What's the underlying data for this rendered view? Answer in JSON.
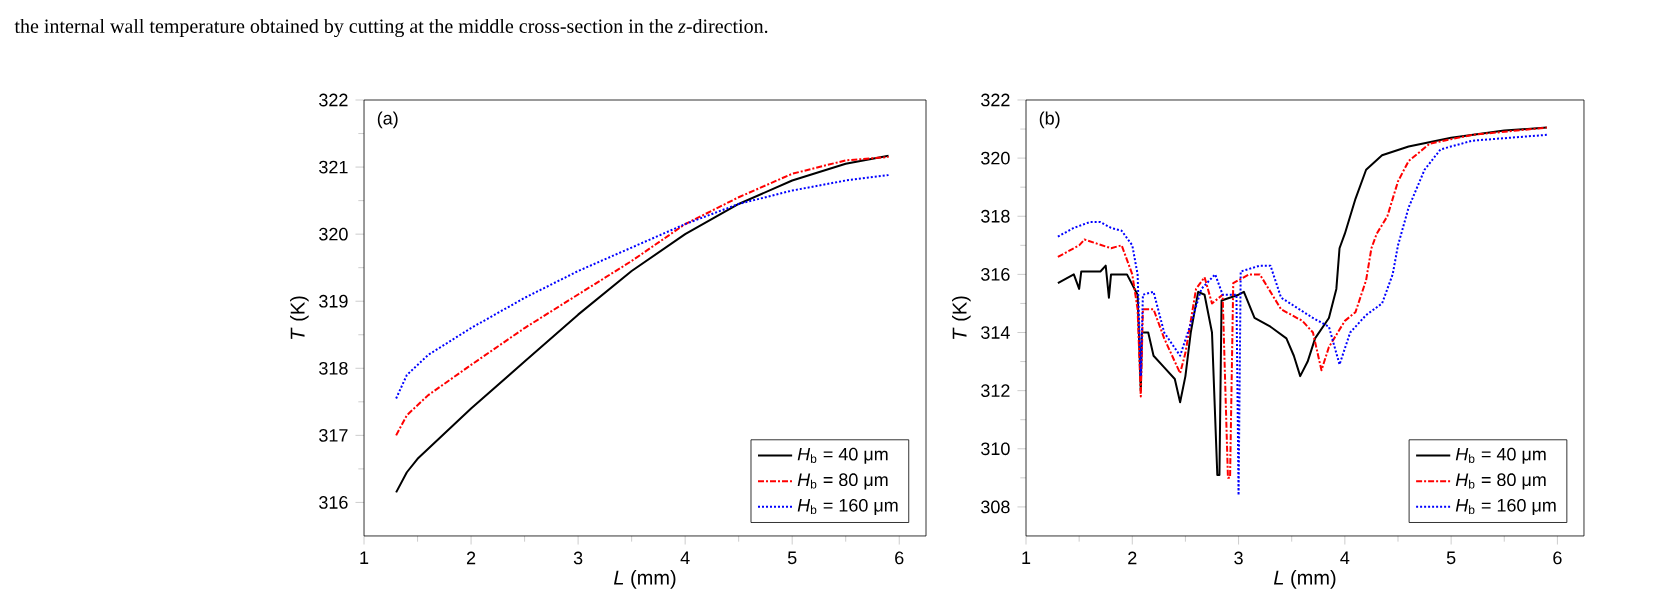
{
  "chart_data": [
    {
      "type": "line",
      "annotations": [
        "the internal wall temperature obtained by cutting at the middle cross-section in the *z*-direction.",
        "(a)"
      ],
      "xlabel": "*L* (mm)",
      "ylabel": "*T* (K)",
      "xlim": [
        1,
        6.25
      ],
      "ylim": [
        315.5,
        322
      ],
      "xticks": [
        1,
        2,
        3,
        4,
        5,
        6
      ],
      "yticks": [
        316,
        317,
        318,
        319,
        320,
        321,
        322
      ],
      "legend": "bottom right",
      "grid": false,
      "series": [
        {
          "name": "*H*$_{b}$ = 40 μm",
          "color": "#000000",
          "line_style": "solid",
          "x": [
            1.3,
            1.4,
            1.5,
            1.7,
            2,
            2.5,
            3,
            3.5,
            4,
            4.5,
            5,
            5.5,
            5.9
          ],
          "values": [
            316.15,
            316.45,
            316.65,
            316.95,
            317.4,
            318.1,
            318.8,
            319.45,
            320.0,
            320.45,
            320.8,
            321.05,
            321.17
          ]
        },
        {
          "name": "*H*$_{b}$ = 80 μm",
          "color": "#ff0000",
          "line_style": "dashed",
          "x": [
            1.3,
            1.4,
            1.6,
            2,
            2.5,
            3,
            3.5,
            4,
            4.5,
            5,
            5.5,
            5.9
          ],
          "values": [
            317.0,
            317.3,
            317.6,
            318.05,
            318.6,
            319.1,
            319.6,
            320.15,
            320.55,
            320.9,
            321.1,
            321.15
          ]
        },
        {
          "name": "*H*$_{b}$ = 160 μm",
          "color": "#0000ff",
          "line_style": "dotted",
          "x": [
            1.3,
            1.4,
            1.6,
            2,
            2.5,
            3,
            3.5,
            4,
            4.5,
            5,
            5.5,
            5.9
          ],
          "values": [
            317.55,
            317.9,
            318.2,
            318.6,
            319.05,
            319.45,
            319.8,
            320.15,
            320.45,
            320.65,
            320.8,
            320.88
          ]
        }
      ]
    },
    {
      "type": "line",
      "annotations": [
        "(b)"
      ],
      "xlabel": "*L* (mm)",
      "ylabel": "*T* (K)",
      "xlim": [
        1,
        6.25
      ],
      "ylim": [
        307,
        322
      ],
      "xticks": [
        1,
        2,
        3,
        4,
        5,
        6
      ],
      "yticks": [
        308,
        310,
        312,
        314,
        316,
        318,
        320,
        322
      ],
      "legend": "bottom right",
      "grid": false,
      "series": [
        {
          "name": "*H*$_{b}$ = 40 μm",
          "color": "#000000",
          "line_style": "solid",
          "x": [
            1.3,
            1.45,
            1.5,
            1.52,
            1.7,
            1.75,
            1.78,
            1.8,
            1.95,
            2.05,
            2.08,
            2.09,
            2.15,
            2.2,
            2.3,
            2.4,
            2.45,
            2.5,
            2.55,
            2.62,
            2.68,
            2.75,
            2.8,
            2.82,
            2.84,
            3.0,
            3.05,
            3.15,
            3.3,
            3.45,
            3.52,
            3.58,
            3.65,
            3.72,
            3.85,
            3.92,
            3.95,
            4.0,
            4.1,
            4.2,
            4.35,
            4.6,
            5.0,
            5.5,
            5.9
          ],
          "values": [
            315.7,
            316.0,
            315.5,
            316.1,
            316.1,
            316.3,
            315.2,
            316.0,
            316.0,
            315.3,
            312.0,
            314.0,
            314.0,
            313.2,
            312.8,
            312.4,
            311.6,
            312.5,
            314.0,
            315.4,
            315.3,
            314.0,
            309.1,
            309.1,
            315.1,
            315.3,
            315.4,
            314.5,
            314.2,
            313.8,
            313.2,
            312.5,
            313.0,
            313.8,
            314.5,
            315.5,
            316.9,
            317.4,
            318.6,
            319.6,
            320.1,
            320.4,
            320.7,
            320.95,
            321.05
          ]
        },
        {
          "name": "*H*$_{b}$ = 80 μm",
          "color": "#ff0000",
          "line_style": "dashed",
          "x": [
            1.3,
            1.5,
            1.55,
            1.8,
            1.9,
            2.0,
            2.05,
            2.08,
            2.1,
            2.2,
            2.3,
            2.45,
            2.5,
            2.6,
            2.68,
            2.75,
            2.85,
            2.9,
            2.92,
            2.95,
            3.1,
            3.2,
            3.3,
            3.4,
            3.6,
            3.7,
            3.78,
            3.85,
            4.0,
            4.1,
            4.2,
            4.25,
            4.3,
            4.4,
            4.5,
            4.6,
            4.8,
            5.2,
            5.9
          ],
          "values": [
            316.6,
            317.0,
            317.2,
            316.9,
            317.0,
            316.0,
            314.8,
            311.8,
            314.8,
            314.8,
            313.8,
            312.6,
            313.3,
            315.5,
            315.9,
            315.0,
            315.3,
            309.0,
            309.0,
            315.7,
            316.0,
            316.0,
            315.4,
            314.8,
            314.4,
            314.0,
            312.7,
            313.5,
            314.4,
            314.7,
            315.8,
            316.9,
            317.4,
            318.0,
            319.2,
            319.9,
            320.5,
            320.8,
            321.05
          ]
        },
        {
          "name": "*H*$_{b}$ = 160 μm",
          "color": "#0000ff",
          "line_style": "dotted",
          "x": [
            1.3,
            1.45,
            1.6,
            1.7,
            1.8,
            1.9,
            2.0,
            2.05,
            2.08,
            2.1,
            2.2,
            2.3,
            2.45,
            2.55,
            2.65,
            2.78,
            2.85,
            2.98,
            3.0,
            3.02,
            3.2,
            3.3,
            3.4,
            3.7,
            3.85,
            3.95,
            4.05,
            4.2,
            4.35,
            4.45,
            4.5,
            4.6,
            4.75,
            4.9,
            5.2,
            5.9
          ],
          "values": [
            317.3,
            317.6,
            317.8,
            317.8,
            317.6,
            317.5,
            317.0,
            316.0,
            312.5,
            315.3,
            315.4,
            314.0,
            313.2,
            314.3,
            315.5,
            316.0,
            315.3,
            315.3,
            308.4,
            316.1,
            316.3,
            316.3,
            315.2,
            314.5,
            314.2,
            312.9,
            314.0,
            314.6,
            315.0,
            316.0,
            317.0,
            318.3,
            319.6,
            320.3,
            320.6,
            320.8
          ]
        }
      ]
    }
  ]
}
